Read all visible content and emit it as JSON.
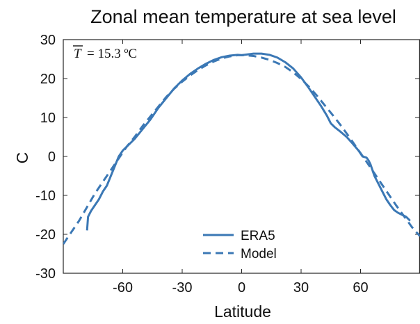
{
  "chart_data": {
    "type": "line",
    "title": "Zonal mean temperature at sea level",
    "xlabel": "Latitude",
    "ylabel": "C",
    "xlim": [
      -90,
      90
    ],
    "ylim": [
      -30,
      30
    ],
    "xticks": [
      -60,
      -30,
      0,
      30,
      60
    ],
    "yticks": [
      -30,
      -20,
      -10,
      0,
      10,
      20,
      30
    ],
    "grid": false,
    "legend_position": "bottom-center",
    "annotation": {
      "symbol": "T",
      "text": "= 15.3 ºC"
    },
    "series": [
      {
        "name": "ERA5",
        "style": "solid",
        "color": "#3b78b5",
        "points": [
          [
            -78,
            -19
          ],
          [
            -77.5,
            -15.5
          ],
          [
            -76,
            -14
          ],
          [
            -74,
            -12.5
          ],
          [
            -72,
            -11
          ],
          [
            -70,
            -9
          ],
          [
            -68,
            -7.5
          ],
          [
            -66,
            -5
          ],
          [
            -64,
            -2.5
          ],
          [
            -62,
            0
          ],
          [
            -60,
            1.5
          ],
          [
            -57,
            3
          ],
          [
            -54,
            4.5
          ],
          [
            -50,
            7
          ],
          [
            -46,
            9.5
          ],
          [
            -42,
            12.5
          ],
          [
            -38,
            15
          ],
          [
            -34,
            17.5
          ],
          [
            -30,
            19.5
          ],
          [
            -26,
            21.2
          ],
          [
            -22,
            22.6
          ],
          [
            -18,
            23.8
          ],
          [
            -14,
            24.8
          ],
          [
            -10,
            25.5
          ],
          [
            -6,
            25.9
          ],
          [
            -2,
            26.1
          ],
          [
            0,
            26.0
          ],
          [
            3,
            26.2
          ],
          [
            6,
            26.4
          ],
          [
            10,
            26.4
          ],
          [
            14,
            26.1
          ],
          [
            18,
            25.4
          ],
          [
            22,
            24.2
          ],
          [
            26,
            22.6
          ],
          [
            30,
            20.3
          ],
          [
            34,
            17.5
          ],
          [
            38,
            14.5
          ],
          [
            40,
            13
          ],
          [
            43,
            10.5
          ],
          [
            45,
            8.5
          ],
          [
            47,
            7.5
          ],
          [
            50,
            6.3
          ],
          [
            53,
            5
          ],
          [
            56,
            3.3
          ],
          [
            59,
            1.5
          ],
          [
            61,
            0
          ],
          [
            63,
            -0.3
          ],
          [
            64,
            -1
          ],
          [
            65,
            -2
          ],
          [
            66,
            -3.5
          ],
          [
            67,
            -5
          ],
          [
            69,
            -7
          ],
          [
            71,
            -9
          ],
          [
            73,
            -11
          ],
          [
            75,
            -12.5
          ],
          [
            77,
            -13.8
          ],
          [
            79,
            -14.5
          ],
          [
            81,
            -15
          ],
          [
            83,
            -15.5
          ],
          [
            85,
            -16.5
          ]
        ]
      },
      {
        "name": "Model",
        "style": "dashed",
        "color": "#3b78b5",
        "points": [
          [
            -90,
            -22.5
          ],
          [
            -86,
            -19.5
          ],
          [
            -82,
            -16.5
          ],
          [
            -78,
            -13
          ],
          [
            -74,
            -9.5
          ],
          [
            -70,
            -6.5
          ],
          [
            -66,
            -3.5
          ],
          [
            -62,
            -0.5
          ],
          [
            -58,
            2.5
          ],
          [
            -54,
            5
          ],
          [
            -50,
            7.8
          ],
          [
            -46,
            10.3
          ],
          [
            -42,
            12.8
          ],
          [
            -38,
            15.3
          ],
          [
            -34,
            17.4
          ],
          [
            -30,
            19.2
          ],
          [
            -26,
            20.8
          ],
          [
            -22,
            22.2
          ],
          [
            -18,
            23.4
          ],
          [
            -14,
            24.4
          ],
          [
            -10,
            25.2
          ],
          [
            -6,
            25.7
          ],
          [
            -2,
            26.0
          ],
          [
            2,
            26.0
          ],
          [
            6,
            25.8
          ],
          [
            10,
            25.4
          ],
          [
            14,
            24.8
          ],
          [
            18,
            24.0
          ],
          [
            22,
            23.0
          ],
          [
            26,
            21.6
          ],
          [
            30,
            19.9
          ],
          [
            34,
            17.9
          ],
          [
            38,
            15.6
          ],
          [
            42,
            13.1
          ],
          [
            46,
            10.6
          ],
          [
            50,
            8.0
          ],
          [
            54,
            5.2
          ],
          [
            58,
            2.3
          ],
          [
            62,
            -0.6
          ],
          [
            66,
            -3.6
          ],
          [
            70,
            -6.6
          ],
          [
            74,
            -9.6
          ],
          [
            78,
            -12.6
          ],
          [
            82,
            -15.4
          ],
          [
            86,
            -18.2
          ],
          [
            90,
            -20.5
          ]
        ]
      }
    ]
  }
}
